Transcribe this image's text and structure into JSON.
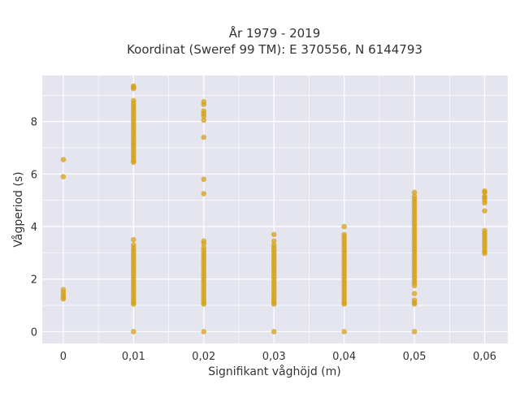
{
  "chart_data": {
    "type": "scatter",
    "title_line1": "År 1979 - 2019",
    "title_line2": "Koordinat (Sweref 99 TM): E 370556, N 6144793",
    "xlabel": "Signifikant våghöjd (m)",
    "ylabel": "Vågperiod (s)",
    "xlim": [
      -0.003,
      0.0633
    ],
    "ylim": [
      -0.45,
      9.75
    ],
    "x_ticks": [
      {
        "value": 0,
        "label": "0"
      },
      {
        "value": 0.01,
        "label": "0,01"
      },
      {
        "value": 0.02,
        "label": "0,02"
      },
      {
        "value": 0.03,
        "label": "0,03"
      },
      {
        "value": 0.04,
        "label": "0,04"
      },
      {
        "value": 0.05,
        "label": "0,05"
      },
      {
        "value": 0.06,
        "label": "0,06"
      }
    ],
    "y_ticks": [
      {
        "value": 0,
        "label": "0"
      },
      {
        "value": 2,
        "label": "2"
      },
      {
        "value": 4,
        "label": "4"
      },
      {
        "value": 6,
        "label": "6"
      },
      {
        "value": 8,
        "label": "8"
      }
    ],
    "y_minor_grid": [
      1,
      3,
      5,
      7,
      9
    ],
    "x_minor_grid": [
      0.005,
      0.015,
      0.025,
      0.035,
      0.045,
      0.055
    ],
    "grid": true,
    "background_color": "#e5e5f0",
    "grid_color": "#ffffff",
    "marker_color": "#d4a017",
    "marker_opacity": 0.75,
    "series": [
      {
        "points": [
          {
            "x": 0,
            "y": 6.55
          },
          {
            "x": 0,
            "y": 5.9
          },
          {
            "x": 0,
            "y": 1.6
          },
          {
            "x": 0,
            "y": 1.5
          },
          {
            "x": 0,
            "y": 1.4
          },
          {
            "x": 0,
            "y": 1.3
          },
          {
            "x": 0,
            "y": 1.25
          },
          {
            "x": 0.01,
            "y": 9.35
          },
          {
            "x": 0.01,
            "y": 9.3
          },
          {
            "x": 0.01,
            "y": 9.25
          },
          {
            "x": 0.01,
            "y": 8.8
          },
          {
            "x": 0.01,
            "y": 8.7
          },
          {
            "x": 0.01,
            "y": 8.6
          },
          {
            "x": 0.01,
            "y": 8.5
          },
          {
            "x": 0.01,
            "y": 8.4
          },
          {
            "x": 0.01,
            "y": 8.3
          },
          {
            "x": 0.01,
            "y": 8.2
          },
          {
            "x": 0.01,
            "y": 8.1
          },
          {
            "x": 0.01,
            "y": 8.0
          },
          {
            "x": 0.01,
            "y": 7.9
          },
          {
            "x": 0.01,
            "y": 7.8
          },
          {
            "x": 0.01,
            "y": 7.7
          },
          {
            "x": 0.01,
            "y": 7.6
          },
          {
            "x": 0.01,
            "y": 7.5
          },
          {
            "x": 0.01,
            "y": 7.4
          },
          {
            "x": 0.01,
            "y": 7.3
          },
          {
            "x": 0.01,
            "y": 7.2
          },
          {
            "x": 0.01,
            "y": 7.1
          },
          {
            "x": 0.01,
            "y": 7.0
          },
          {
            "x": 0.01,
            "y": 6.9
          },
          {
            "x": 0.01,
            "y": 6.8
          },
          {
            "x": 0.01,
            "y": 6.7
          },
          {
            "x": 0.01,
            "y": 6.6
          },
          {
            "x": 0.01,
            "y": 6.5
          },
          {
            "x": 0.01,
            "y": 6.45
          },
          {
            "x": 0.01,
            "y": 3.5
          },
          {
            "x": 0.01,
            "y": 3.3
          },
          {
            "x": 0.01,
            "y": 3.2
          },
          {
            "x": 0.01,
            "y": 3.1
          },
          {
            "x": 0.01,
            "y": 3.0
          },
          {
            "x": 0.01,
            "y": 2.9
          },
          {
            "x": 0.01,
            "y": 2.8
          },
          {
            "x": 0.01,
            "y": 2.7
          },
          {
            "x": 0.01,
            "y": 2.6
          },
          {
            "x": 0.01,
            "y": 2.5
          },
          {
            "x": 0.01,
            "y": 2.4
          },
          {
            "x": 0.01,
            "y": 2.3
          },
          {
            "x": 0.01,
            "y": 2.2
          },
          {
            "x": 0.01,
            "y": 2.1
          },
          {
            "x": 0.01,
            "y": 2.0
          },
          {
            "x": 0.01,
            "y": 1.9
          },
          {
            "x": 0.01,
            "y": 1.8
          },
          {
            "x": 0.01,
            "y": 1.7
          },
          {
            "x": 0.01,
            "y": 1.6
          },
          {
            "x": 0.01,
            "y": 1.5
          },
          {
            "x": 0.01,
            "y": 1.4
          },
          {
            "x": 0.01,
            "y": 1.3
          },
          {
            "x": 0.01,
            "y": 1.2
          },
          {
            "x": 0.01,
            "y": 1.1
          },
          {
            "x": 0.01,
            "y": 1.05
          },
          {
            "x": 0.01,
            "y": 0
          },
          {
            "x": 0.02,
            "y": 8.75
          },
          {
            "x": 0.02,
            "y": 8.65
          },
          {
            "x": 0.02,
            "y": 8.4
          },
          {
            "x": 0.02,
            "y": 8.3
          },
          {
            "x": 0.02,
            "y": 8.2
          },
          {
            "x": 0.02,
            "y": 8.05
          },
          {
            "x": 0.02,
            "y": 7.4
          },
          {
            "x": 0.02,
            "y": 5.8
          },
          {
            "x": 0.02,
            "y": 5.25
          },
          {
            "x": 0.02,
            "y": 3.45
          },
          {
            "x": 0.02,
            "y": 3.35
          },
          {
            "x": 0.02,
            "y": 3.2
          },
          {
            "x": 0.02,
            "y": 3.1
          },
          {
            "x": 0.02,
            "y": 3.0
          },
          {
            "x": 0.02,
            "y": 2.9
          },
          {
            "x": 0.02,
            "y": 2.8
          },
          {
            "x": 0.02,
            "y": 2.7
          },
          {
            "x": 0.02,
            "y": 2.6
          },
          {
            "x": 0.02,
            "y": 2.5
          },
          {
            "x": 0.02,
            "y": 2.4
          },
          {
            "x": 0.02,
            "y": 2.3
          },
          {
            "x": 0.02,
            "y": 2.2
          },
          {
            "x": 0.02,
            "y": 2.1
          },
          {
            "x": 0.02,
            "y": 2.0
          },
          {
            "x": 0.02,
            "y": 1.9
          },
          {
            "x": 0.02,
            "y": 1.8
          },
          {
            "x": 0.02,
            "y": 1.7
          },
          {
            "x": 0.02,
            "y": 1.6
          },
          {
            "x": 0.02,
            "y": 1.5
          },
          {
            "x": 0.02,
            "y": 1.4
          },
          {
            "x": 0.02,
            "y": 1.3
          },
          {
            "x": 0.02,
            "y": 1.2
          },
          {
            "x": 0.02,
            "y": 1.1
          },
          {
            "x": 0.02,
            "y": 1.05
          },
          {
            "x": 0.02,
            "y": 0
          },
          {
            "x": 0.03,
            "y": 3.7
          },
          {
            "x": 0.03,
            "y": 3.45
          },
          {
            "x": 0.03,
            "y": 3.3
          },
          {
            "x": 0.03,
            "y": 3.2
          },
          {
            "x": 0.03,
            "y": 3.1
          },
          {
            "x": 0.03,
            "y": 3.0
          },
          {
            "x": 0.03,
            "y": 2.9
          },
          {
            "x": 0.03,
            "y": 2.8
          },
          {
            "x": 0.03,
            "y": 2.7
          },
          {
            "x": 0.03,
            "y": 2.6
          },
          {
            "x": 0.03,
            "y": 2.5
          },
          {
            "x": 0.03,
            "y": 2.4
          },
          {
            "x": 0.03,
            "y": 2.3
          },
          {
            "x": 0.03,
            "y": 2.2
          },
          {
            "x": 0.03,
            "y": 2.1
          },
          {
            "x": 0.03,
            "y": 2.0
          },
          {
            "x": 0.03,
            "y": 1.9
          },
          {
            "x": 0.03,
            "y": 1.8
          },
          {
            "x": 0.03,
            "y": 1.7
          },
          {
            "x": 0.03,
            "y": 1.6
          },
          {
            "x": 0.03,
            "y": 1.5
          },
          {
            "x": 0.03,
            "y": 1.4
          },
          {
            "x": 0.03,
            "y": 1.3
          },
          {
            "x": 0.03,
            "y": 1.2
          },
          {
            "x": 0.03,
            "y": 1.1
          },
          {
            "x": 0.03,
            "y": 1.05
          },
          {
            "x": 0.03,
            "y": 0
          },
          {
            "x": 0.04,
            "y": 4.0
          },
          {
            "x": 0.04,
            "y": 3.7
          },
          {
            "x": 0.04,
            "y": 3.6
          },
          {
            "x": 0.04,
            "y": 3.5
          },
          {
            "x": 0.04,
            "y": 3.4
          },
          {
            "x": 0.04,
            "y": 3.3
          },
          {
            "x": 0.04,
            "y": 3.2
          },
          {
            "x": 0.04,
            "y": 3.1
          },
          {
            "x": 0.04,
            "y": 3.0
          },
          {
            "x": 0.04,
            "y": 2.9
          },
          {
            "x": 0.04,
            "y": 2.8
          },
          {
            "x": 0.04,
            "y": 2.7
          },
          {
            "x": 0.04,
            "y": 2.6
          },
          {
            "x": 0.04,
            "y": 2.5
          },
          {
            "x": 0.04,
            "y": 2.4
          },
          {
            "x": 0.04,
            "y": 2.3
          },
          {
            "x": 0.04,
            "y": 2.2
          },
          {
            "x": 0.04,
            "y": 2.1
          },
          {
            "x": 0.04,
            "y": 2.0
          },
          {
            "x": 0.04,
            "y": 1.9
          },
          {
            "x": 0.04,
            "y": 1.8
          },
          {
            "x": 0.04,
            "y": 1.7
          },
          {
            "x": 0.04,
            "y": 1.6
          },
          {
            "x": 0.04,
            "y": 1.5
          },
          {
            "x": 0.04,
            "y": 1.4
          },
          {
            "x": 0.04,
            "y": 1.3
          },
          {
            "x": 0.04,
            "y": 1.2
          },
          {
            "x": 0.04,
            "y": 1.1
          },
          {
            "x": 0.04,
            "y": 1.05
          },
          {
            "x": 0.04,
            "y": 0
          },
          {
            "x": 0.05,
            "y": 5.3
          },
          {
            "x": 0.05,
            "y": 5.15
          },
          {
            "x": 0.05,
            "y": 5.05
          },
          {
            "x": 0.05,
            "y": 4.95
          },
          {
            "x": 0.05,
            "y": 4.85
          },
          {
            "x": 0.05,
            "y": 4.75
          },
          {
            "x": 0.05,
            "y": 4.65
          },
          {
            "x": 0.05,
            "y": 4.55
          },
          {
            "x": 0.05,
            "y": 4.45
          },
          {
            "x": 0.05,
            "y": 4.35
          },
          {
            "x": 0.05,
            "y": 4.25
          },
          {
            "x": 0.05,
            "y": 4.15
          },
          {
            "x": 0.05,
            "y": 4.05
          },
          {
            "x": 0.05,
            "y": 3.95
          },
          {
            "x": 0.05,
            "y": 3.85
          },
          {
            "x": 0.05,
            "y": 3.75
          },
          {
            "x": 0.05,
            "y": 3.65
          },
          {
            "x": 0.05,
            "y": 3.55
          },
          {
            "x": 0.05,
            "y": 3.45
          },
          {
            "x": 0.05,
            "y": 3.35
          },
          {
            "x": 0.05,
            "y": 3.25
          },
          {
            "x": 0.05,
            "y": 3.15
          },
          {
            "x": 0.05,
            "y": 3.05
          },
          {
            "x": 0.05,
            "y": 2.95
          },
          {
            "x": 0.05,
            "y": 2.85
          },
          {
            "x": 0.05,
            "y": 2.75
          },
          {
            "x": 0.05,
            "y": 2.65
          },
          {
            "x": 0.05,
            "y": 2.55
          },
          {
            "x": 0.05,
            "y": 2.45
          },
          {
            "x": 0.05,
            "y": 2.35
          },
          {
            "x": 0.05,
            "y": 2.25
          },
          {
            "x": 0.05,
            "y": 2.15
          },
          {
            "x": 0.05,
            "y": 2.05
          },
          {
            "x": 0.05,
            "y": 1.95
          },
          {
            "x": 0.05,
            "y": 1.85
          },
          {
            "x": 0.05,
            "y": 1.75
          },
          {
            "x": 0.05,
            "y": 1.45
          },
          {
            "x": 0.05,
            "y": 1.2
          },
          {
            "x": 0.05,
            "y": 1.1
          },
          {
            "x": 0.05,
            "y": 1.05
          },
          {
            "x": 0.05,
            "y": 0
          },
          {
            "x": 0.06,
            "y": 5.35
          },
          {
            "x": 0.06,
            "y": 5.3
          },
          {
            "x": 0.06,
            "y": 5.15
          },
          {
            "x": 0.06,
            "y": 5.1
          },
          {
            "x": 0.06,
            "y": 5.0
          },
          {
            "x": 0.06,
            "y": 4.9
          },
          {
            "x": 0.06,
            "y": 4.6
          },
          {
            "x": 0.06,
            "y": 3.85
          },
          {
            "x": 0.06,
            "y": 3.75
          },
          {
            "x": 0.06,
            "y": 3.65
          },
          {
            "x": 0.06,
            "y": 3.55
          },
          {
            "x": 0.06,
            "y": 3.45
          },
          {
            "x": 0.06,
            "y": 3.35
          },
          {
            "x": 0.06,
            "y": 3.25
          },
          {
            "x": 0.06,
            "y": 3.15
          },
          {
            "x": 0.06,
            "y": 3.05
          },
          {
            "x": 0.06,
            "y": 2.98
          }
        ]
      }
    ]
  }
}
